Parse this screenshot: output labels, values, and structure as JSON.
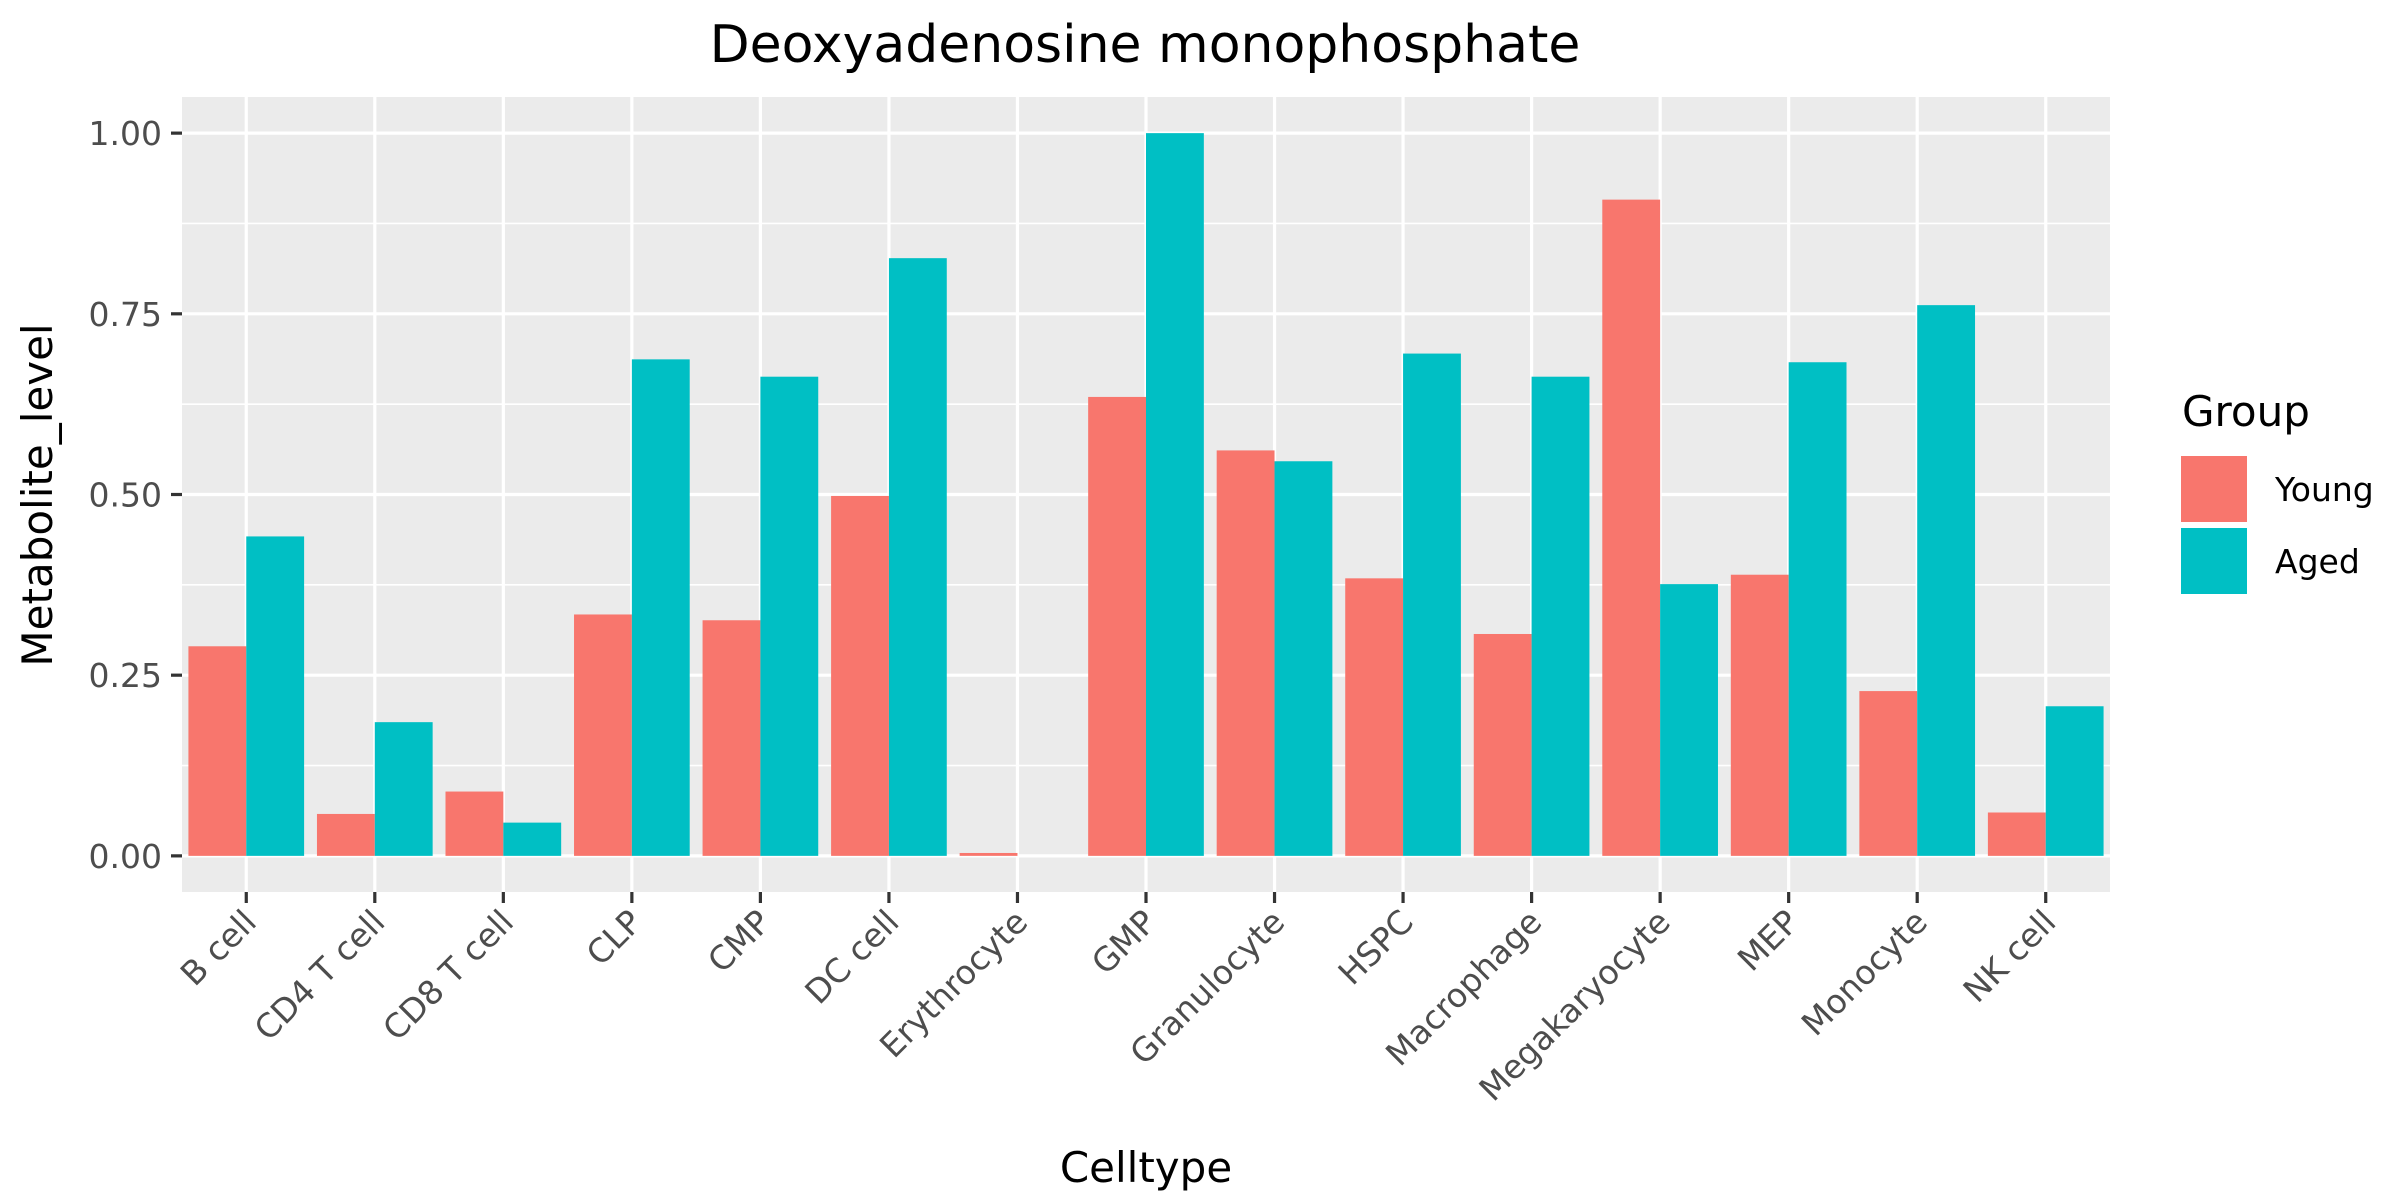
{
  "chart_data": {
    "type": "bar",
    "title": "Deoxyadenosine monophosphate",
    "xlabel": "Celltype",
    "ylabel": "Metabolite_level",
    "categories": [
      "B cell",
      "CD4 T cell",
      "CD8 T cell",
      "CLP",
      "CMP",
      "DC cell",
      "Erythrocyte",
      "GMP",
      "Granulocyte",
      "HSPC",
      "Macrophage",
      "Megakaryocyte",
      "MEP",
      "Monocyte",
      "NK cell"
    ],
    "series": [
      {
        "name": "Young",
        "color": "#F8766D",
        "values": [
          0.29,
          0.058,
          0.089,
          0.334,
          0.326,
          0.498,
          0.004,
          0.635,
          0.561,
          0.384,
          0.307,
          0.908,
          0.389,
          0.228,
          0.06
        ]
      },
      {
        "name": "Aged",
        "color": "#00BFC4",
        "values": [
          0.442,
          0.185,
          0.046,
          0.687,
          0.663,
          0.827,
          0.0,
          1.0,
          0.546,
          0.695,
          0.663,
          0.376,
          0.683,
          0.762,
          0.207
        ]
      }
    ],
    "ylim": [
      -0.05,
      1.05
    ],
    "yticks": [
      0.0,
      0.25,
      0.5,
      0.75,
      1.0
    ],
    "ytick_labels": [
      "0.00",
      "0.25",
      "0.50",
      "0.75",
      "1.00"
    ],
    "grid": true,
    "legend": {
      "title": "Group",
      "position": "right"
    },
    "colors": {
      "panel_background": "#EBEBEB",
      "grid": "#FFFFFF",
      "tick_text": "#4D4D4D",
      "axis_tick": "#333333"
    }
  }
}
